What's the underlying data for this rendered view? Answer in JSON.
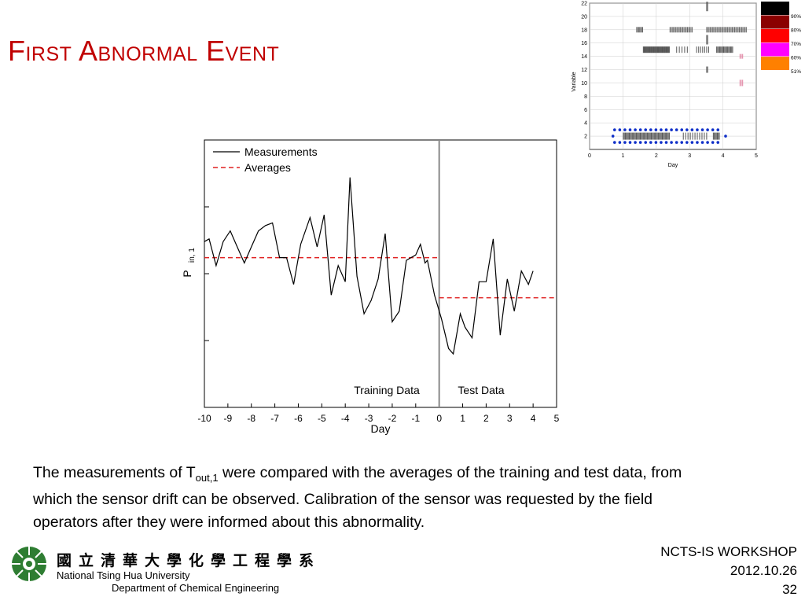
{
  "slide": {
    "title": "First Abnormal Event",
    "description_pre": "The measurements of T",
    "description_sub": "out,1",
    "description_post": " were compared with the averages of the training and test data, from which the sensor drift can be observed. Calibration of the sensor was requested by the field operators after they were informed about this abnormality.",
    "footer": {
      "line1": "NCTS-IS WORKSHOP",
      "line2": "2012.10.26",
      "page": "32"
    },
    "logo": {
      "chinese_name": "國立清華大學化學工程學系",
      "university_en": "National Tsing Hua University",
      "department_en": "Department of Chemical Engineering"
    }
  },
  "colors": {
    "title": "#c00000",
    "measurement": "#000000",
    "average": "#e02020",
    "divider": "#888888",
    "dots": "#1030c8"
  },
  "chart_data": [
    {
      "type": "line",
      "title": "",
      "xlabel": "Day",
      "ylabel_main": "P",
      "ylabel_sub": "in, 1",
      "xlim": [
        -10,
        5
      ],
      "ylim": [
        0,
        100
      ],
      "x_ticks": [
        -10,
        -9,
        -8,
        -7,
        -6,
        -5,
        -4,
        -3,
        -2,
        -1,
        0,
        1,
        2,
        3,
        4,
        5
      ],
      "divider_x": 0,
      "legend": {
        "position": "top-left",
        "entries": [
          "Measurements",
          "Averages"
        ]
      },
      "annotations": {
        "training": "Training Data",
        "test": "Test Data"
      },
      "series": [
        {
          "name": "Measurements",
          "points": [
            [
              -10,
              62
            ],
            [
              -9.8,
              63
            ],
            [
              -9.5,
              53
            ],
            [
              -9.2,
              62
            ],
            [
              -8.9,
              66
            ],
            [
              -8.6,
              60
            ],
            [
              -8.3,
              54
            ],
            [
              -8.0,
              60
            ],
            [
              -7.7,
              66
            ],
            [
              -7.4,
              68
            ],
            [
              -7.1,
              69
            ],
            [
              -6.8,
              56
            ],
            [
              -6.5,
              56
            ],
            [
              -6.2,
              46
            ],
            [
              -5.9,
              61
            ],
            [
              -5.5,
              71
            ],
            [
              -5.2,
              60
            ],
            [
              -4.9,
              72
            ],
            [
              -4.6,
              42
            ],
            [
              -4.3,
              53
            ],
            [
              -4.0,
              47
            ],
            [
              -3.8,
              86
            ],
            [
              -3.5,
              49
            ],
            [
              -3.2,
              35
            ],
            [
              -2.9,
              40
            ],
            [
              -2.6,
              48
            ],
            [
              -2.3,
              65
            ],
            [
              -2.0,
              32
            ],
            [
              -1.7,
              36
            ],
            [
              -1.4,
              55
            ],
            [
              -1.0,
              57
            ],
            [
              -0.8,
              61
            ],
            [
              -0.6,
              54
            ],
            [
              -0.5,
              55
            ],
            [
              -0.2,
              42
            ],
            [
              0.1,
              33
            ],
            [
              0.4,
              22
            ],
            [
              0.6,
              20
            ],
            [
              0.9,
              35
            ],
            [
              1.1,
              30
            ],
            [
              1.4,
              26
            ],
            [
              1.7,
              47
            ],
            [
              2.0,
              47
            ],
            [
              2.3,
              63
            ],
            [
              2.6,
              27
            ],
            [
              2.9,
              48
            ],
            [
              3.2,
              36
            ],
            [
              3.5,
              51
            ],
            [
              3.8,
              46
            ],
            [
              4.0,
              51
            ]
          ]
        },
        {
          "name": "Averages",
          "segments": [
            [
              -10,
              0,
              56
            ],
            [
              0,
              5,
              41
            ]
          ]
        }
      ]
    },
    {
      "type": "heatmap",
      "title": "",
      "xlabel": "Day",
      "ylabel": "Variable",
      "xlim": [
        0,
        5
      ],
      "ylim": [
        0,
        22
      ],
      "x_ticks": [
        0,
        1,
        2,
        3,
        4,
        5
      ],
      "y_ticks": [
        2,
        4,
        6,
        8,
        10,
        12,
        14,
        16,
        18,
        20,
        22
      ],
      "legend": {
        "position": "right",
        "levels": [
          {
            "label": "90%",
            "color": "#000000"
          },
          {
            "label": "80%",
            "color": "#8b0000"
          },
          {
            "label": "70%",
            "color": "#ff0000"
          },
          {
            "label": "60%",
            "color": "#ff00ff"
          },
          {
            "label": "51%",
            "color": "#ff8000"
          }
        ]
      },
      "highlighted_variable": 2
    }
  ]
}
